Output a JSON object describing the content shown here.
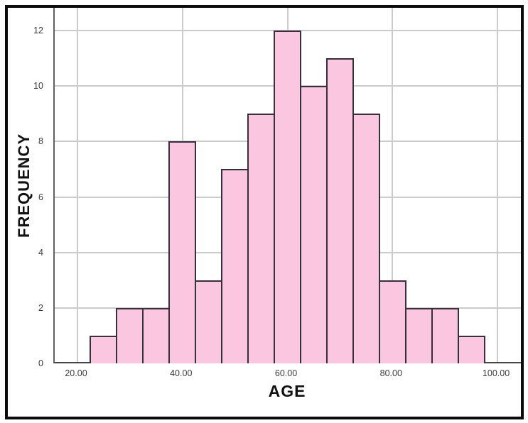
{
  "chart_data": {
    "type": "bar",
    "subtype": "histogram",
    "title": "",
    "xlabel": "AGE",
    "ylabel": "FREQUENCY",
    "bin_start": 22.5,
    "bin_width": 5,
    "values": [
      1,
      2,
      2,
      8,
      3,
      7,
      9,
      12,
      10,
      11,
      9,
      3,
      2,
      2,
      1
    ],
    "bin_edges": [
      22.5,
      27.5,
      32.5,
      37.5,
      42.5,
      47.5,
      52.5,
      57.5,
      62.5,
      67.5,
      72.5,
      77.5,
      82.5,
      87.5,
      92.5,
      97.5
    ],
    "x_ticks": [
      20,
      40,
      60,
      80,
      100
    ],
    "x_tick_labels": [
      "20.00",
      "40.00",
      "60.00",
      "80.00",
      "100.00"
    ],
    "y_ticks": [
      0,
      2,
      4,
      6,
      8,
      10,
      12
    ],
    "y_tick_labels": [
      "0",
      "2",
      "4",
      "6",
      "8",
      "10",
      "12"
    ],
    "xlim": [
      15.67,
      104.73
    ],
    "ylim": [
      0,
      12.82
    ],
    "grid": true,
    "legend": "none",
    "colors": {
      "bar_fill": "#FBC7E0",
      "bar_edge": "#362F3D",
      "grid": "#CBCBCB",
      "axis": "#4A4A4A",
      "tick_text": "#3B3B3B",
      "title_text": "#111111",
      "frame": "#0B0B0B",
      "background": "#FFFFFF"
    }
  }
}
